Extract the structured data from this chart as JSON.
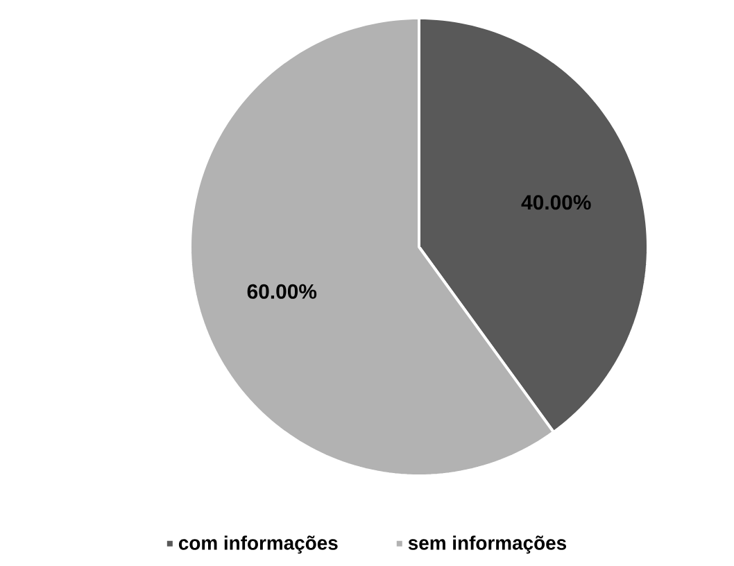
{
  "chart_data": {
    "type": "pie",
    "categories": [
      "com informações",
      "sem informações"
    ],
    "values": [
      40,
      60
    ],
    "colors": [
      "#595959",
      "#b2b2b2"
    ],
    "value_labels": [
      "40.00%",
      "60.00%"
    ],
    "legend": "bottom"
  }
}
